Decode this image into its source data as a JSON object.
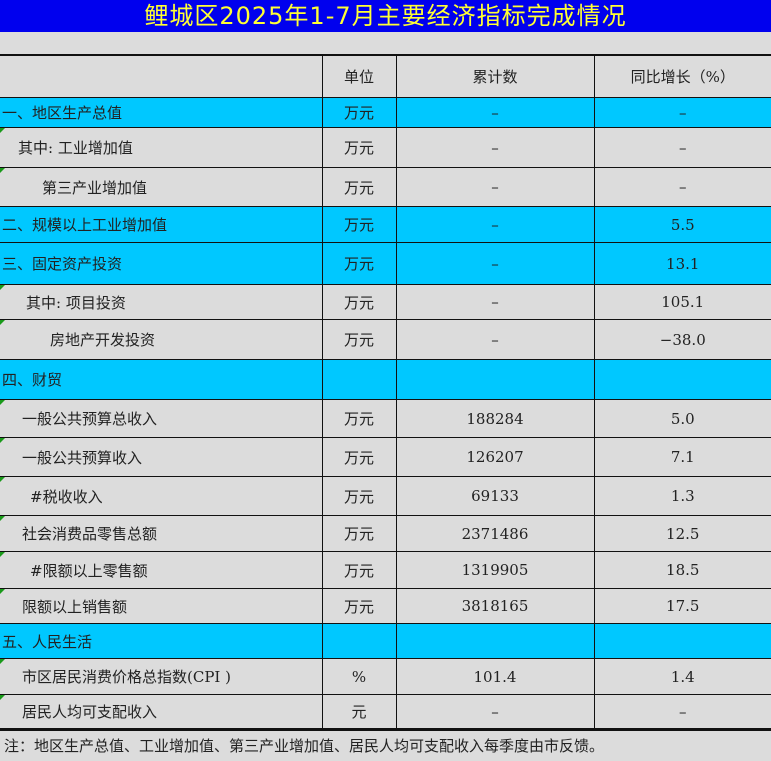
{
  "title": "鲤城区2025年1-7月主要经济指标完成情况",
  "headers": {
    "item": "",
    "unit": "单位",
    "cumulative": "累计数",
    "yoy": "同比增长（%）"
  },
  "rows": [
    {
      "name": "一、地区生产总值",
      "unit": "万元",
      "cumulative": "–",
      "yoy": "–"
    },
    {
      "name": "其中: 工业增加值",
      "unit": "万元",
      "cumulative": "–",
      "yoy": "–"
    },
    {
      "name": "第三产业增加值",
      "unit": "万元",
      "cumulative": "–",
      "yoy": "–"
    },
    {
      "name": "二、规模以上工业增加值",
      "unit": "万元",
      "cumulative": "–",
      "yoy": "5.5"
    },
    {
      "name": "三、固定资产投资",
      "unit": "万元",
      "cumulative": "–",
      "yoy": "13.1"
    },
    {
      "name": "其中: 项目投资",
      "unit": "万元",
      "cumulative": "–",
      "yoy": "105.1"
    },
    {
      "name": "房地产开发投资",
      "unit": "万元",
      "cumulative": "–",
      "yoy": "−38.0"
    },
    {
      "name": "四、财贸",
      "unit": "",
      "cumulative": "",
      "yoy": ""
    },
    {
      "name": "一般公共预算总收入",
      "unit": "万元",
      "cumulative": "188284",
      "yoy": "5.0"
    },
    {
      "name": "一般公共预算收入",
      "unit": "万元",
      "cumulative": "126207",
      "yoy": "7.1"
    },
    {
      "name": "#税收收入",
      "unit": "万元",
      "cumulative": "69133",
      "yoy": "1.3"
    },
    {
      "name": "社会消费品零售总额",
      "unit": "万元",
      "cumulative": "2371486",
      "yoy": "12.5"
    },
    {
      "name": "#限额以上零售额",
      "unit": "万元",
      "cumulative": "1319905",
      "yoy": "18.5"
    },
    {
      "name": "限额以上销售额",
      "unit": "万元",
      "cumulative": "3818165",
      "yoy": "17.5"
    },
    {
      "name": "五、人民生活",
      "unit": "",
      "cumulative": "",
      "yoy": ""
    },
    {
      "name": "市区居民消费价格总指数(CPI )",
      "unit": "%",
      "cumulative": "101.4",
      "yoy": "1.4"
    },
    {
      "name": "居民人均可支配收入",
      "unit": "元",
      "cumulative": "–",
      "yoy": "–"
    }
  ],
  "note": "注：地区生产总值、工业增加值、第三产业增加值、居民人均可支配收入每季度由市反馈。",
  "colors": {
    "title_bg": "#0000ee",
    "title_text": "#ffff33",
    "section_bg": "#00c8ff",
    "body_bg": "#dcdcdc"
  }
}
